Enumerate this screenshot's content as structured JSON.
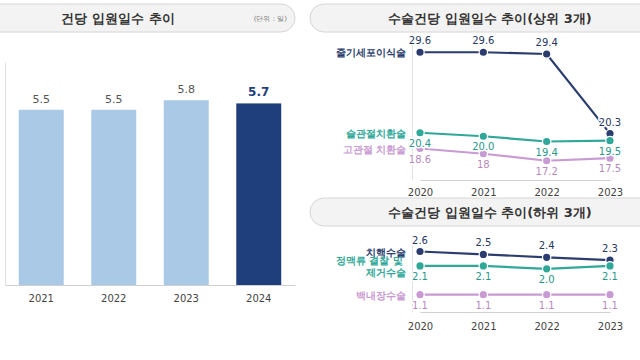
{
  "chart_data": [
    {
      "type": "bar",
      "title": "건당 입원일수 추이",
      "subtitle": "(단위 : 일)",
      "categories": [
        "2021",
        "2022",
        "2023",
        "2024"
      ],
      "values": [
        5.5,
        5.5,
        5.8,
        5.7
      ],
      "colors": [
        "#a9c9e6",
        "#a9c9e6",
        "#a9c9e6",
        "#1e3f7c"
      ],
      "ylim": [
        0,
        7
      ],
      "yticks": [],
      "data_labels": true,
      "tick_labels": "x"
    },
    {
      "type": "line",
      "title": "수술건당 입원일수 추이(상위 3개)",
      "categories": [
        "2020",
        "2021",
        "2022",
        "2023"
      ],
      "series": [
        {
          "name": "줄기세포이식술",
          "color": "#2b3d6e",
          "values": [
            29.6,
            29.6,
            29.4,
            20.3
          ]
        },
        {
          "name": "슬관절치환술",
          "color": "#2fa89a",
          "values": [
            20.4,
            20.0,
            19.4,
            19.5
          ],
          "value_labels": [
            "20.4",
            "20.0",
            "19.4",
            "19.5"
          ]
        },
        {
          "name": "고관절 치환술",
          "color": "#c99bd3",
          "values": [
            18.6,
            18.0,
            17.2,
            17.5
          ]
        }
      ],
      "ylim": [
        15,
        31
      ],
      "yticks": [],
      "data_labels": true,
      "tick_labels": "x",
      "marker": "circle"
    },
    {
      "type": "line",
      "title": "수술건당 입원일수 추이(하위 3개)",
      "categories": [
        "2020",
        "2021",
        "2022",
        "2023"
      ],
      "series": [
        {
          "name": "치핵수술",
          "color": "#2b3d6e",
          "values": [
            2.6,
            2.5,
            2.4,
            2.3
          ]
        },
        {
          "name": "정맥류 결찰 및 제거수술",
          "color": "#2fa89a",
          "values": [
            2.1,
            2.1,
            2.0,
            2.1
          ],
          "value_labels": [
            "2.1",
            "2.1",
            "2.0",
            "2.1"
          ]
        },
        {
          "name": "백내장수술",
          "color": "#c99bd3",
          "values": [
            1.1,
            1.1,
            1.1,
            1.1
          ]
        }
      ],
      "ylim": [
        0.5,
        3
      ],
      "yticks": [],
      "data_labels": true,
      "tick_labels": "x",
      "marker": "circle"
    }
  ]
}
